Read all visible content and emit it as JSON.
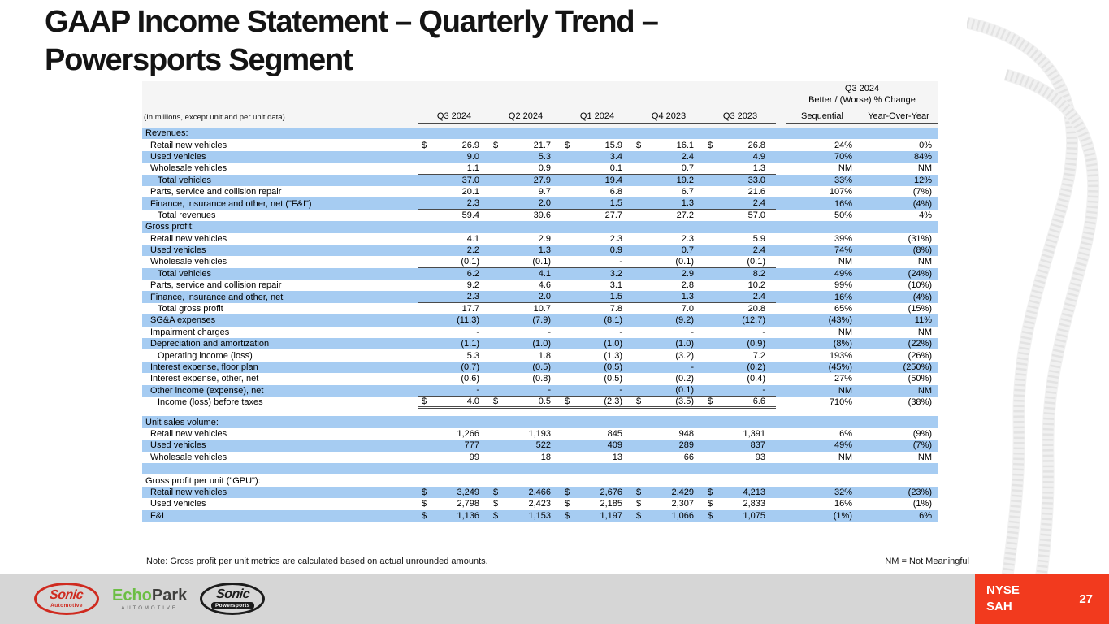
{
  "slide": {
    "title_line1": "GAAP Income Statement – Quarterly Trend –",
    "title_line2": "Powersports Segment"
  },
  "table": {
    "units_label": "(In millions, except unit and per unit data)",
    "change_group_line1": "Q3 2024",
    "change_group_line2": "Better / (Worse) % Change",
    "quarter_columns": [
      "Q3 2024",
      "Q2 2024",
      "Q1 2024",
      "Q4 2023",
      "Q3 2023"
    ],
    "change_columns": [
      "Sequential",
      "Year-Over-Year"
    ],
    "rows": [
      {
        "type": "section",
        "shade": "blue",
        "label": "Revenues:"
      },
      {
        "shade": "white",
        "indent": 1,
        "label": "Retail new vehicles",
        "dollar": true,
        "values": [
          "26.9",
          "21.7",
          "15.9",
          "16.1",
          "26.8"
        ],
        "seq": "24%",
        "yoy": "0%"
      },
      {
        "shade": "blue",
        "indent": 1,
        "label": "Used vehicles",
        "values": [
          "9.0",
          "5.3",
          "3.4",
          "2.4",
          "4.9"
        ],
        "seq": "70%",
        "yoy": "84%"
      },
      {
        "shade": "white",
        "indent": 1,
        "label": "Wholesale vehicles",
        "values": [
          "1.1",
          "0.9",
          "0.1",
          "0.7",
          "1.3"
        ],
        "seq": "NM",
        "yoy": "NM",
        "underline": "single"
      },
      {
        "shade": "blue",
        "indent": 2,
        "label": "Total vehicles",
        "values": [
          "37.0",
          "27.9",
          "19.4",
          "19.2",
          "33.0"
        ],
        "seq": "33%",
        "yoy": "12%"
      },
      {
        "shade": "white",
        "indent": 1,
        "label": "Parts, service and collision repair",
        "values": [
          "20.1",
          "9.7",
          "6.8",
          "6.7",
          "21.6"
        ],
        "seq": "107%",
        "yoy": "(7%)"
      },
      {
        "shade": "blue",
        "indent": 1,
        "label": "Finance, insurance and other, net (\"F&I\")",
        "values": [
          "2.3",
          "2.0",
          "1.5",
          "1.3",
          "2.4"
        ],
        "seq": "16%",
        "yoy": "(4%)",
        "underline": "single"
      },
      {
        "shade": "white",
        "indent": 2,
        "label": "Total revenues",
        "values": [
          "59.4",
          "39.6",
          "27.7",
          "27.2",
          "57.0"
        ],
        "seq": "50%",
        "yoy": "4%"
      },
      {
        "type": "section",
        "shade": "blue",
        "label": "Gross profit:"
      },
      {
        "shade": "white",
        "indent": 1,
        "label": "Retail new vehicles",
        "values": [
          "4.1",
          "2.9",
          "2.3",
          "2.3",
          "5.9"
        ],
        "seq": "39%",
        "yoy": "(31%)"
      },
      {
        "shade": "blue",
        "indent": 1,
        "label": "Used vehicles",
        "values": [
          "2.2",
          "1.3",
          "0.9",
          "0.7",
          "2.4"
        ],
        "seq": "74%",
        "yoy": "(8%)"
      },
      {
        "shade": "white",
        "indent": 1,
        "label": "Wholesale vehicles",
        "values": [
          "(0.1)",
          "(0.1)",
          "-",
          "(0.1)",
          "(0.1)"
        ],
        "seq": "NM",
        "yoy": "NM",
        "underline": "single"
      },
      {
        "shade": "blue",
        "indent": 2,
        "label": "Total vehicles",
        "values": [
          "6.2",
          "4.1",
          "3.2",
          "2.9",
          "8.2"
        ],
        "seq": "49%",
        "yoy": "(24%)"
      },
      {
        "shade": "white",
        "indent": 1,
        "label": "Parts, service and collision repair",
        "values": [
          "9.2",
          "4.6",
          "3.1",
          "2.8",
          "10.2"
        ],
        "seq": "99%",
        "yoy": "(10%)"
      },
      {
        "shade": "blue",
        "indent": 1,
        "label": "Finance, insurance and other, net",
        "values": [
          "2.3",
          "2.0",
          "1.5",
          "1.3",
          "2.4"
        ],
        "seq": "16%",
        "yoy": "(4%)",
        "underline": "single"
      },
      {
        "shade": "white",
        "indent": 2,
        "label": "Total gross profit",
        "values": [
          "17.7",
          "10.7",
          "7.8",
          "7.0",
          "20.8"
        ],
        "seq": "65%",
        "yoy": "(15%)"
      },
      {
        "shade": "blue",
        "indent": 1,
        "label": "SG&A expenses",
        "values": [
          "(11.3)",
          "(7.9)",
          "(8.1)",
          "(9.2)",
          "(12.7)"
        ],
        "seq": "(43%)",
        "yoy": "11%"
      },
      {
        "shade": "white",
        "indent": 1,
        "label": "Impairment charges",
        "values": [
          "-",
          "-",
          "-",
          "-",
          "-"
        ],
        "seq": "NM",
        "yoy": "NM"
      },
      {
        "shade": "blue",
        "indent": 1,
        "label": "Depreciation and amortization",
        "values": [
          "(1.1)",
          "(1.0)",
          "(1.0)",
          "(1.0)",
          "(0.9)"
        ],
        "seq": "(8%)",
        "yoy": "(22%)",
        "underline": "single"
      },
      {
        "shade": "white",
        "indent": 2,
        "label": "Operating income (loss)",
        "values": [
          "5.3",
          "1.8",
          "(1.3)",
          "(3.2)",
          "7.2"
        ],
        "seq": "193%",
        "yoy": "(26%)"
      },
      {
        "shade": "blue",
        "indent": 1,
        "label": "Interest expense, floor plan",
        "values": [
          "(0.7)",
          "(0.5)",
          "(0.5)",
          "-",
          "(0.2)"
        ],
        "seq": "(45%)",
        "yoy": "(250%)"
      },
      {
        "shade": "white",
        "indent": 1,
        "label": "Interest expense, other, net",
        "values": [
          "(0.6)",
          "(0.8)",
          "(0.5)",
          "(0.2)",
          "(0.4)"
        ],
        "seq": "27%",
        "yoy": "(50%)"
      },
      {
        "shade": "blue",
        "indent": 1,
        "label": "Other income (expense), net",
        "values": [
          "-",
          "-",
          "-",
          "(0.1)",
          "-"
        ],
        "seq": "NM",
        "yoy": "NM",
        "underline": "single"
      },
      {
        "shade": "white",
        "indent": 2,
        "label": "Income (loss) before taxes",
        "dollar": true,
        "values": [
          "4.0",
          "0.5",
          "(2.3)",
          "(3.5)",
          "6.6"
        ],
        "seq": "710%",
        "yoy": "(38%)",
        "underline": "double"
      },
      {
        "type": "gap"
      },
      {
        "type": "section",
        "shade": "blue",
        "label": "Unit sales volume:"
      },
      {
        "shade": "white",
        "indent": 1,
        "label": "Retail new vehicles",
        "values": [
          "1,266",
          "1,193",
          "845",
          "948",
          "1,391"
        ],
        "seq": "6%",
        "yoy": "(9%)"
      },
      {
        "shade": "blue",
        "indent": 1,
        "label": "Used vehicles",
        "values": [
          "777",
          "522",
          "409",
          "289",
          "837"
        ],
        "seq": "49%",
        "yoy": "(7%)"
      },
      {
        "shade": "white",
        "indent": 1,
        "label": "Wholesale vehicles",
        "values": [
          "99",
          "18",
          "13",
          "66",
          "93"
        ],
        "seq": "NM",
        "yoy": "NM"
      },
      {
        "type": "spacer",
        "shade": "blue"
      },
      {
        "type": "section",
        "shade": "white",
        "label": "Gross profit per unit (\"GPU\"):"
      },
      {
        "shade": "blue",
        "indent": 1,
        "label": "Retail new vehicles",
        "dollar": true,
        "values": [
          "3,249",
          "2,466",
          "2,676",
          "2,429",
          "4,213"
        ],
        "seq": "32%",
        "yoy": "(23%)"
      },
      {
        "shade": "white",
        "indent": 1,
        "label": "Used vehicles",
        "dollar": true,
        "values": [
          "2,798",
          "2,423",
          "2,185",
          "2,307",
          "2,833"
        ],
        "seq": "16%",
        "yoy": "(1%)"
      },
      {
        "shade": "blue",
        "indent": 1,
        "label": "F&I",
        "dollar": true,
        "values": [
          "1,136",
          "1,153",
          "1,197",
          "1,066",
          "1,075"
        ],
        "seq": "(1%)",
        "yoy": "6%"
      }
    ]
  },
  "notes": {
    "footnote": "Note: Gross profit per unit metrics are calculated based on actual unrounded amounts.",
    "nm_legend": "NM = Not Meaningful"
  },
  "footer": {
    "ticker_exchange": "NYSE",
    "ticker_symbol": "SAH",
    "page_number": "27",
    "logos": {
      "sonic_automotive": {
        "main": "Sonic",
        "sub": "Automotive"
      },
      "echopark": {
        "main_1": "Echo",
        "main_2": "Park",
        "sub": "AUTOMOTIVE"
      },
      "sonic_powersports": {
        "main": "Sonic",
        "sub": "Powersports"
      }
    }
  },
  "colors": {
    "row_blue": "#A6CCF2",
    "accent_red": "#F23A1E",
    "footer_gray": "#D6D6D6",
    "logo_red": "#CF2A1F",
    "logo_green": "#6CBE45",
    "track_gray": "#ECECEC"
  }
}
